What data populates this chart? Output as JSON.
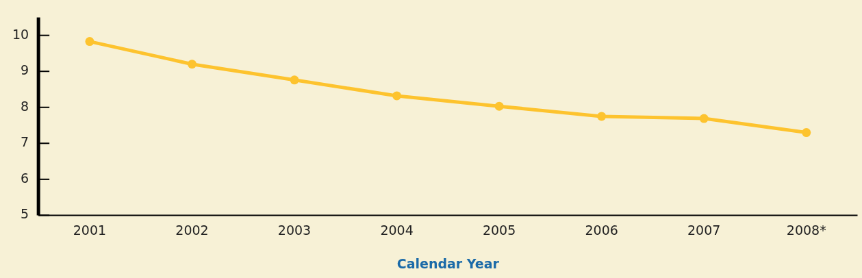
{
  "chart_data": {
    "type": "line",
    "xlabel": "Calendar Year",
    "categories": [
      "2001",
      "2002",
      "2003",
      "2004",
      "2005",
      "2006",
      "2007",
      "2008*"
    ],
    "series": [
      {
        "color": "#fdc32e",
        "values": [
          9.83,
          9.2,
          8.76,
          8.32,
          8.03,
          7.75,
          7.69,
          7.3
        ]
      }
    ],
    "ylim": [
      5,
      10.5
    ],
    "yticks": [
      5,
      6,
      7,
      8,
      9,
      10
    ],
    "grid": false,
    "legend": false,
    "marker": "circle",
    "line_style": "solid"
  }
}
